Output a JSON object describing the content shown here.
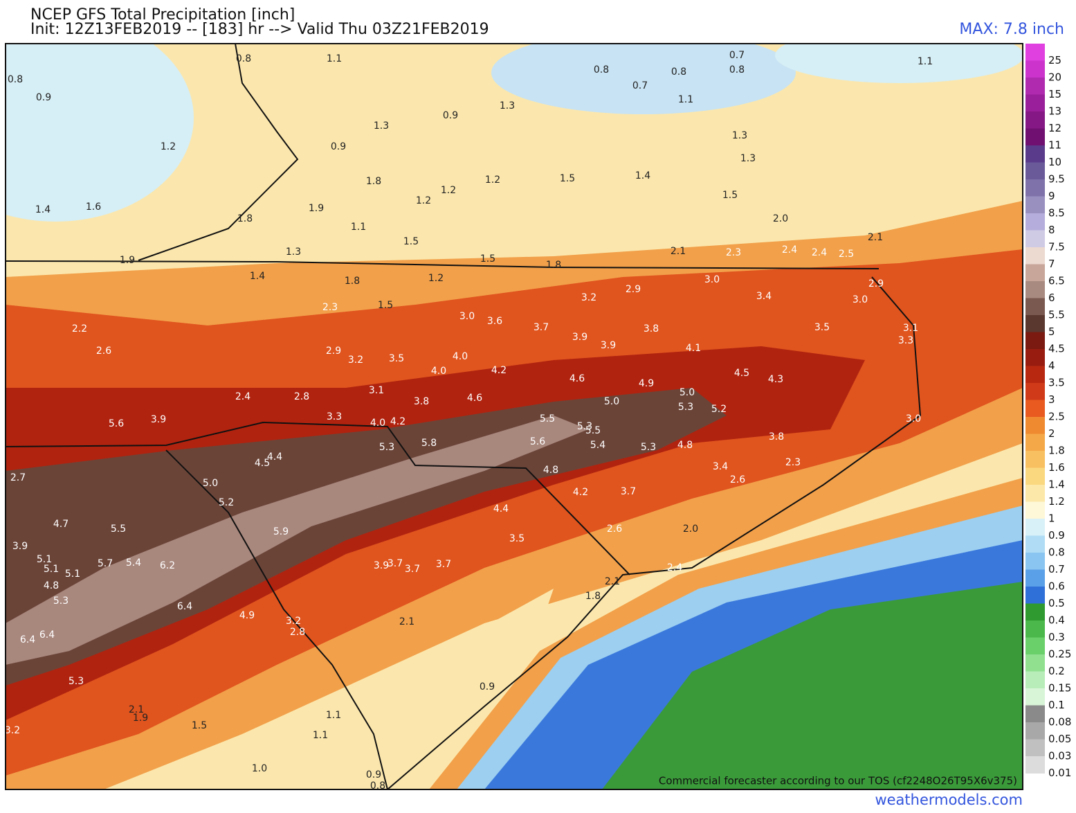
{
  "header": {
    "title": "NCEP GFS Total Precipitation [inch]",
    "subtitle": "Init: 12Z13FEB2019 -- [183] hr --> Valid Thu 03Z21FEB2019",
    "max": "MAX: 7.8 inch"
  },
  "map": {
    "labels": [
      "1.1",
      "0.8",
      "0.8",
      "0.9",
      "0.8",
      "0.8",
      "0.7",
      "0.7",
      "0.8",
      "1.1",
      "0.9",
      "1.3",
      "1.1",
      "1.3",
      "1.2",
      "0.9",
      "1.3",
      "1.3",
      "1.8",
      "1.2",
      "1.2",
      "1.2",
      "1.5",
      "1.4",
      "1.5",
      "1.4",
      "1.6",
      "1.9",
      "1.8",
      "1.1",
      "2.0",
      "1.5",
      "1.3",
      "1.9",
      "1.5",
      "1.8",
      "2.1",
      "2.3",
      "2.4",
      "2.4",
      "2.5",
      "2.1",
      "1.4",
      "1.8",
      "1.2",
      "3.0",
      "2.9",
      "3.2",
      "3.4",
      "2.9",
      "3.0",
      "2.3",
      "1.5",
      "3.0",
      "3.6",
      "3.7",
      "3.8",
      "2.2",
      "3.5",
      "3.1",
      "3.3",
      "3.9",
      "3.9",
      "4.1",
      "2.6",
      "2.9",
      "3.2",
      "3.5",
      "4.0",
      "4.0",
      "4.2",
      "4.6",
      "4.9",
      "4.5",
      "4.3",
      "5.0",
      "2.4",
      "2.8",
      "3.1",
      "3.8",
      "4.6",
      "5.0",
      "5.3",
      "5.2",
      "5.6",
      "3.9",
      "3.3",
      "4.0",
      "4.2",
      "5.5",
      "5.3",
      "5.5",
      "3.0",
      "3.8",
      "5.8",
      "5.3",
      "5.6",
      "5.4",
      "5.3",
      "4.8",
      "2.3",
      "4.4",
      "4.5",
      "3.4",
      "2.7",
      "4.8",
      "2.6",
      "5.0",
      "5.2",
      "4.2",
      "3.7",
      "4.4",
      "4.7",
      "5.5",
      "2.6",
      "5.9",
      "2.0",
      "3.5",
      "3.9",
      "5.1",
      "5.1",
      "5.1",
      "5.7",
      "5.4",
      "6.2",
      "3.9",
      "3.7",
      "3.7",
      "3.7",
      "2.4",
      "4.8",
      "2.1",
      "5.3",
      "1.8",
      "6.4",
      "4.9",
      "3.2",
      "2.8",
      "2.1",
      "6.4",
      "6.4",
      "5.3",
      "0.9",
      "2.1",
      "1.9",
      "1.1",
      "3.2",
      "1.5",
      "1.1",
      "1.0",
      "0.9",
      "0.8"
    ]
  },
  "colorbar": {
    "levels": [
      "25",
      "20",
      "15",
      "13",
      "12",
      "11",
      "10",
      "9.5",
      "9",
      "8.5",
      "8",
      "7.5",
      "7",
      "6.5",
      "6",
      "5.5",
      "5",
      "4.5",
      "4",
      "3.5",
      "3",
      "2.5",
      "2",
      "1.8",
      "1.6",
      "1.4",
      "1.2",
      "1",
      "0.9",
      "0.8",
      "0.7",
      "0.6",
      "0.5",
      "0.4",
      "0.3",
      "0.25",
      "0.2",
      "0.15",
      "0.1",
      "0.08",
      "0.05",
      "0.03",
      "0.01"
    ],
    "colors": [
      "#e040e0",
      "#cc33cc",
      "#b02ab0",
      "#9a1f9a",
      "#851885",
      "#701070",
      "#5a3a8a",
      "#6a5a9a",
      "#7f72aa",
      "#9a90c0",
      "#b5addb",
      "#d0cbe5",
      "#ecd9d0",
      "#c8a79a",
      "#a88a80",
      "#7a5a50",
      "#5a3830",
      "#7a1a10",
      "#981c10",
      "#b82810",
      "#d03a18",
      "#e85a20",
      "#f08a30",
      "#f4a848",
      "#f8c060",
      "#fad880",
      "#fce8a8",
      "#fef8d8",
      "#d8f0f8",
      "#b0ddf5",
      "#8ac4f0",
      "#5aa0e8",
      "#2e6fd8",
      "#2e9a30",
      "#4ab84a",
      "#6ad06a",
      "#90e090",
      "#b8ecb8",
      "#d8f5d8",
      "#8a8a8a",
      "#a8a8a8",
      "#c0c0c0",
      "#dcdcdc"
    ]
  },
  "footer": {
    "notice": "Commercial forecaster according to our TOS (cf2248O26T95X6v375)",
    "source": "weathermodels.com"
  }
}
